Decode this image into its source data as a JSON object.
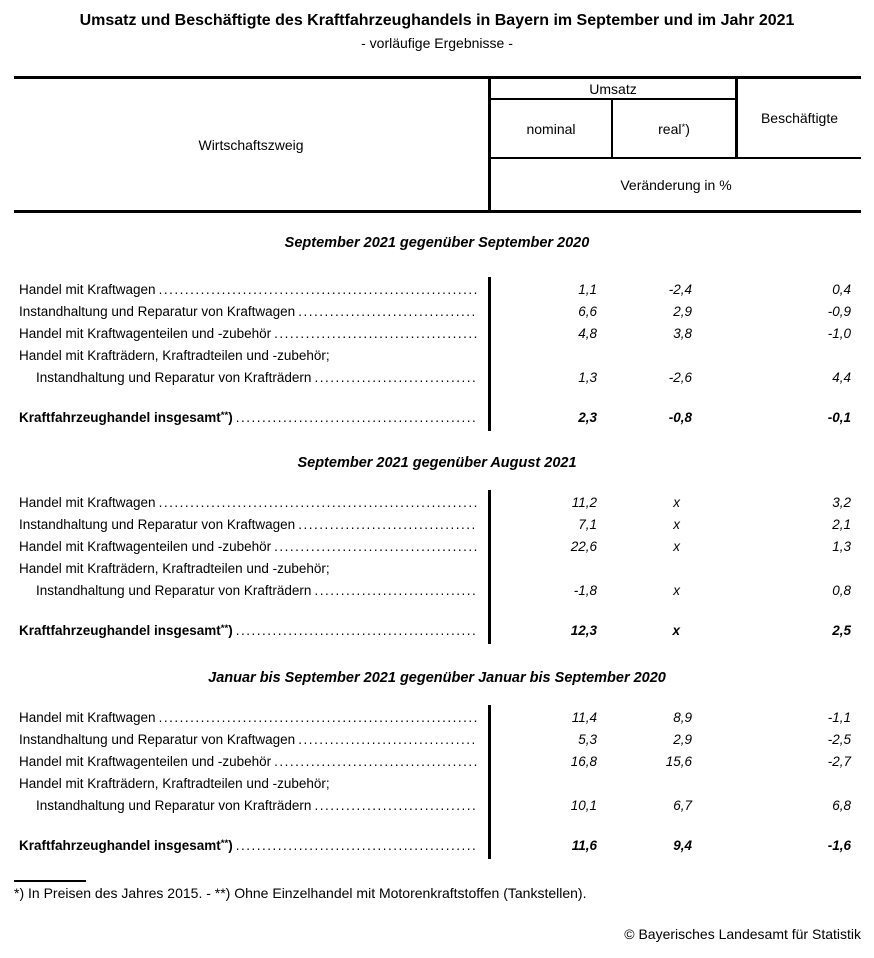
{
  "page": {
    "title": "Umsatz und Beschäftigte des Kraftfahrzeughandels in Bayern im September und im Jahr 2021",
    "subtitle": "- vorläufige Ergebnisse -",
    "footnote": "*) In Preisen des Jahres 2015. - **) Ohne Einzelhandel mit Motorenkraftstoffen (Tankstellen).",
    "copyright": "© Bayerisches Landesamt für Statistik"
  },
  "table": {
    "header": {
      "branch": "Wirtschaftszweig",
      "umsatz": "Umsatz",
      "nominal": "nominal",
      "real": {
        "text": "real",
        "sup": "*",
        "after": ")"
      },
      "beschaeftigte": "Beschäftigte",
      "unit": "Veränderung in %"
    },
    "sections": [
      {
        "heading": "September 2021 gegenüber September 2020",
        "rows": [
          {
            "label": "Handel mit Kraftwagen",
            "values": [
              "1,1",
              "-2,4",
              "0,4"
            ]
          },
          {
            "label": "Instandhaltung und Reparatur von Kraftwagen",
            "values": [
              "6,6",
              "2,9",
              "-0,9"
            ]
          },
          {
            "label": "Handel mit Kraftwagenteilen und -zubehör",
            "values": [
              "4,8",
              "3,8",
              "-1,0"
            ]
          },
          {
            "label": "Handel mit Krafträdern, Kraftradteilen und -zubehör;",
            "values": []
          },
          {
            "label": "Instandhaltung und Reparatur von Krafträdern",
            "values": [
              "1,3",
              "-2,6",
              "4,4"
            ]
          }
        ],
        "total": {
          "label": "Kraftfahrzeughandel insgesamt",
          "sup": "**",
          "after": ")",
          "values": [
            "2,3",
            "-0,8",
            "-0,1"
          ]
        }
      },
      {
        "heading": "September 2021 gegenüber August 2021",
        "rows": [
          {
            "label": "Handel mit Kraftwagen",
            "values": [
              "11,2",
              "x",
              "3,2"
            ]
          },
          {
            "label": "Instandhaltung und Reparatur von Kraftwagen",
            "values": [
              "7,1",
              "x",
              "2,1"
            ]
          },
          {
            "label": "Handel mit Kraftwagenteilen und -zubehör",
            "values": [
              "22,6",
              "x",
              "1,3"
            ]
          },
          {
            "label": "Handel mit Krafträdern, Kraftradteilen und -zubehör;",
            "values": []
          },
          {
            "label": "Instandhaltung und Reparatur von Krafträdern",
            "values": [
              "-1,8",
              "x",
              "0,8"
            ]
          }
        ],
        "total": {
          "label": "Kraftfahrzeughandel insgesamt",
          "sup": "**",
          "after": ")",
          "values": [
            "12,3",
            "x",
            "2,5"
          ]
        }
      },
      {
        "heading": "Januar bis September 2021 gegenüber Januar bis September 2020",
        "rows": [
          {
            "label": "Handel mit Kraftwagen",
            "values": [
              "11,4",
              "8,9",
              "-1,1"
            ]
          },
          {
            "label": "Instandhaltung und Reparatur von Kraftwagen",
            "values": [
              "5,3",
              "2,9",
              "-2,5"
            ]
          },
          {
            "label": "Handel mit Kraftwagenteilen und -zubehör",
            "values": [
              "16,8",
              "15,6",
              "-2,7"
            ]
          },
          {
            "label": "Handel mit Krafträdern, Kraftradteilen und -zubehör;",
            "values": []
          },
          {
            "label": "Instandhaltung und Reparatur von Krafträdern",
            "values": [
              "10,1",
              "6,7",
              "6,8"
            ]
          }
        ],
        "total": {
          "label": "Kraftfahrzeughandel insgesamt",
          "sup": "**",
          "after": ")",
          "values": [
            "11,6",
            "9,4",
            "-1,6"
          ]
        }
      }
    ]
  }
}
